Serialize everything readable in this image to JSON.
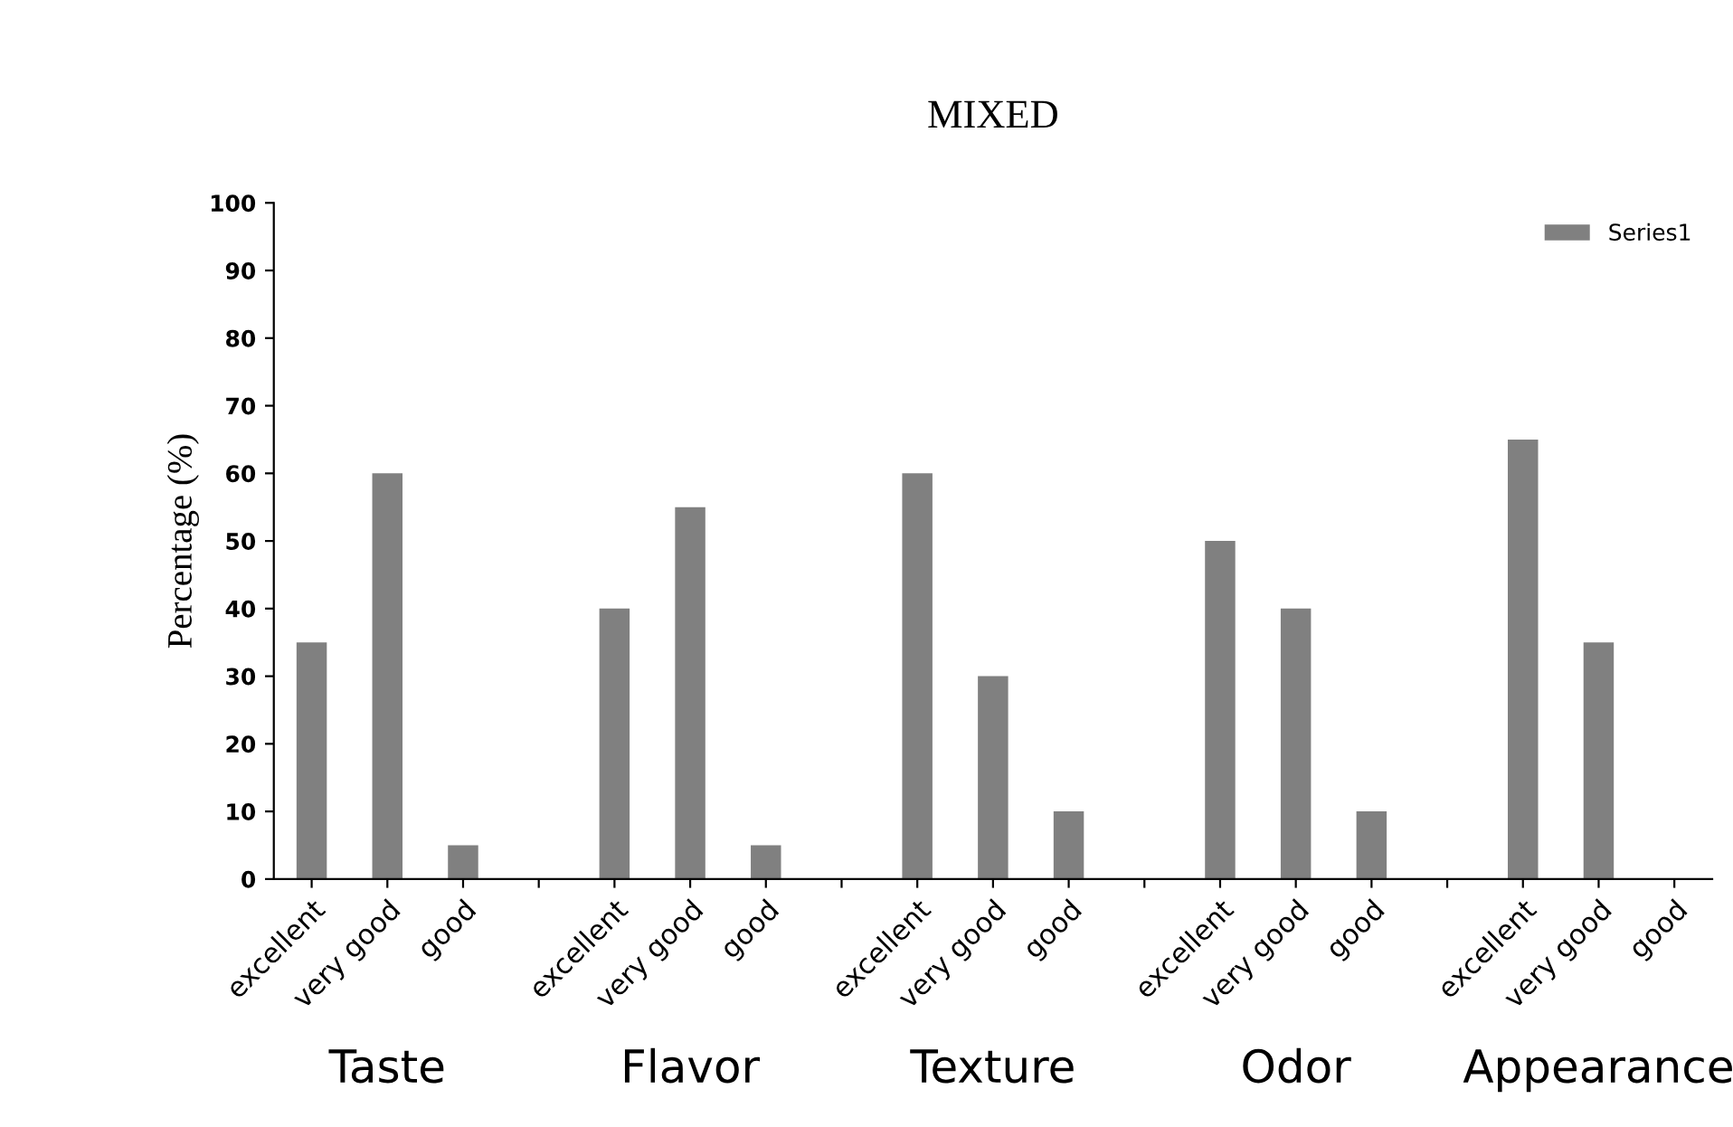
{
  "chart_data": {
    "type": "bar",
    "title": "MIXED",
    "ylabel": "Percentage (%)",
    "categories": [
      "excellent",
      "very good",
      "good",
      null,
      "excellent",
      "very good",
      "good",
      null,
      "excellent",
      "very good",
      "good",
      null,
      "excellent",
      "very good",
      "good",
      null,
      "excellent",
      "very good",
      "good"
    ],
    "series": [
      {
        "name": "Series1",
        "color": "#808080",
        "values": [
          35,
          60,
          5,
          null,
          40,
          55,
          5,
          null,
          60,
          30,
          10,
          null,
          50,
          40,
          10,
          null,
          65,
          35,
          0
        ]
      }
    ],
    "annotations": [
      "Taste",
      "Flavor",
      "Texture",
      "Odor",
      "Appearance"
    ],
    "ylim": [
      0,
      100
    ],
    "yticks": [
      0,
      10,
      20,
      30,
      40,
      50,
      60,
      70,
      80,
      90,
      100
    ],
    "grid": false,
    "legend": "top right"
  }
}
